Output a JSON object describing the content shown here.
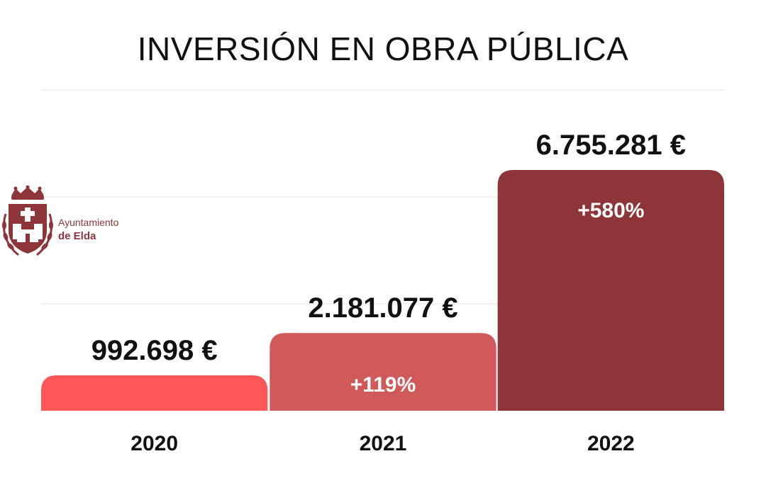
{
  "chart_data": {
    "type": "bar",
    "title": "INVERSIÓN EN OBRA PÚBLICA",
    "categories": [
      "2020",
      "2021",
      "2022"
    ],
    "values": [
      992698,
      2181077,
      6755281
    ],
    "value_labels": [
      "992.698 €",
      "2.181.077 €",
      "6.755.281 €"
    ],
    "change_labels": [
      "",
      "+119%",
      "+580%"
    ],
    "colors": [
      "#ff5757",
      "#d05a5a",
      "#8e3539"
    ],
    "xlabel": "",
    "ylabel": "",
    "ylim": [
      0,
      9000000
    ],
    "grid": true
  },
  "logo": {
    "line1": "Ayuntamiento",
    "line2": "de Elda",
    "color": "#8e3539"
  }
}
